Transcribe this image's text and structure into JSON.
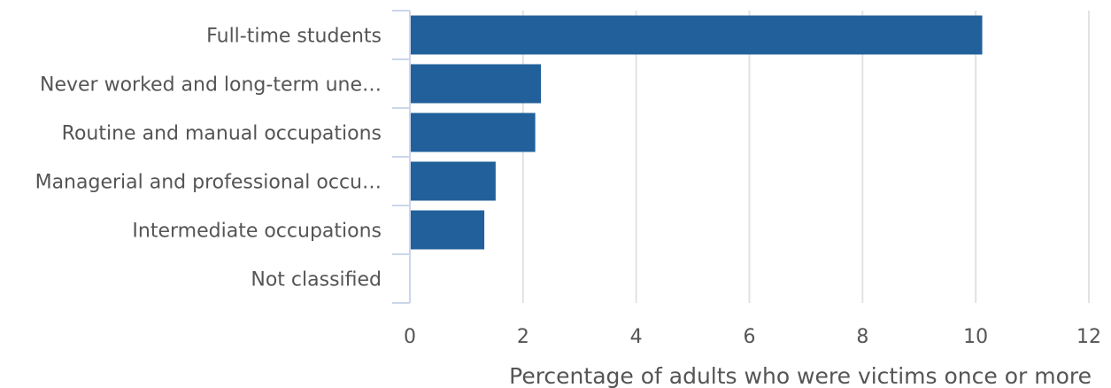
{
  "chart_data": {
    "type": "bar",
    "orientation": "horizontal",
    "categories": [
      "Full-time students",
      "Never worked and long-term une…",
      "Routine and manual occupations",
      "Managerial and professional occu…",
      "Intermediate occupations",
      "Not classified"
    ],
    "values": [
      10.1,
      2.3,
      2.2,
      1.5,
      1.3,
      null
    ],
    "xlabel": "Percentage of adults who were victims once or more",
    "ylabel": "",
    "xlim": [
      0,
      12
    ],
    "xticks": [
      "0",
      "2",
      "4",
      "6",
      "8",
      "10",
      "12"
    ],
    "grid": "vertical",
    "bar_color": "#21609b",
    "grid_color": "#e2e2e6",
    "axis_color": "#ccd6eb"
  }
}
